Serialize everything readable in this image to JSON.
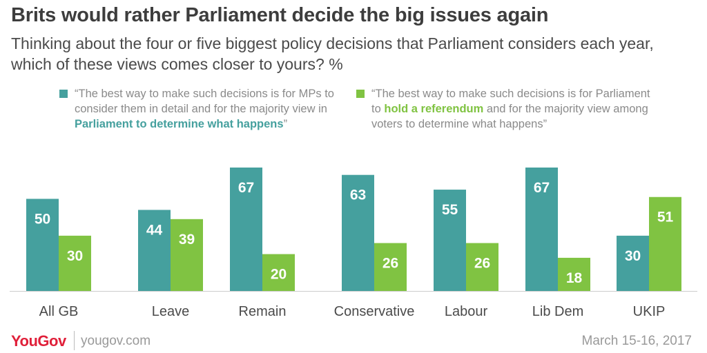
{
  "header": {
    "title": "Brits would rather Parliament decide the big issues again",
    "subtitle": "Thinking about the four or five biggest policy decisions that Parliament considers each year, which of these views comes closer to yours? %"
  },
  "legend": {
    "parliament": {
      "text_before": "“The best way to make such decisions is for MPs to consider them in detail and for the majority view in ",
      "highlight": "Parliament to determine what happens",
      "text_after": "”",
      "color": "#45a09e"
    },
    "referendum": {
      "text_before": "“The best way to make such decisions is for Parliament to ",
      "highlight": "hold a referendum",
      "text_after": " and for the majority view among voters to determine what happens”",
      "color": "#80c342"
    }
  },
  "chart_data": {
    "type": "bar",
    "categories": [
      "All GB",
      "Leave",
      "Remain",
      "Conservative",
      "Labour",
      "Lib Dem",
      "UKIP"
    ],
    "series": [
      {
        "name": "Parliament to determine what happens",
        "values": [
          50,
          44,
          67,
          63,
          55,
          67,
          30
        ],
        "color": "#45a09e"
      },
      {
        "name": "hold a referendum",
        "values": [
          30,
          39,
          20,
          26,
          26,
          18,
          51
        ],
        "color": "#80c342"
      }
    ],
    "ylim": [
      0,
      67
    ],
    "grid": false,
    "legend_position": "top"
  },
  "footer": {
    "brand": "YouGov",
    "site": "yougov.com",
    "date": "March 15-16, 2017"
  }
}
